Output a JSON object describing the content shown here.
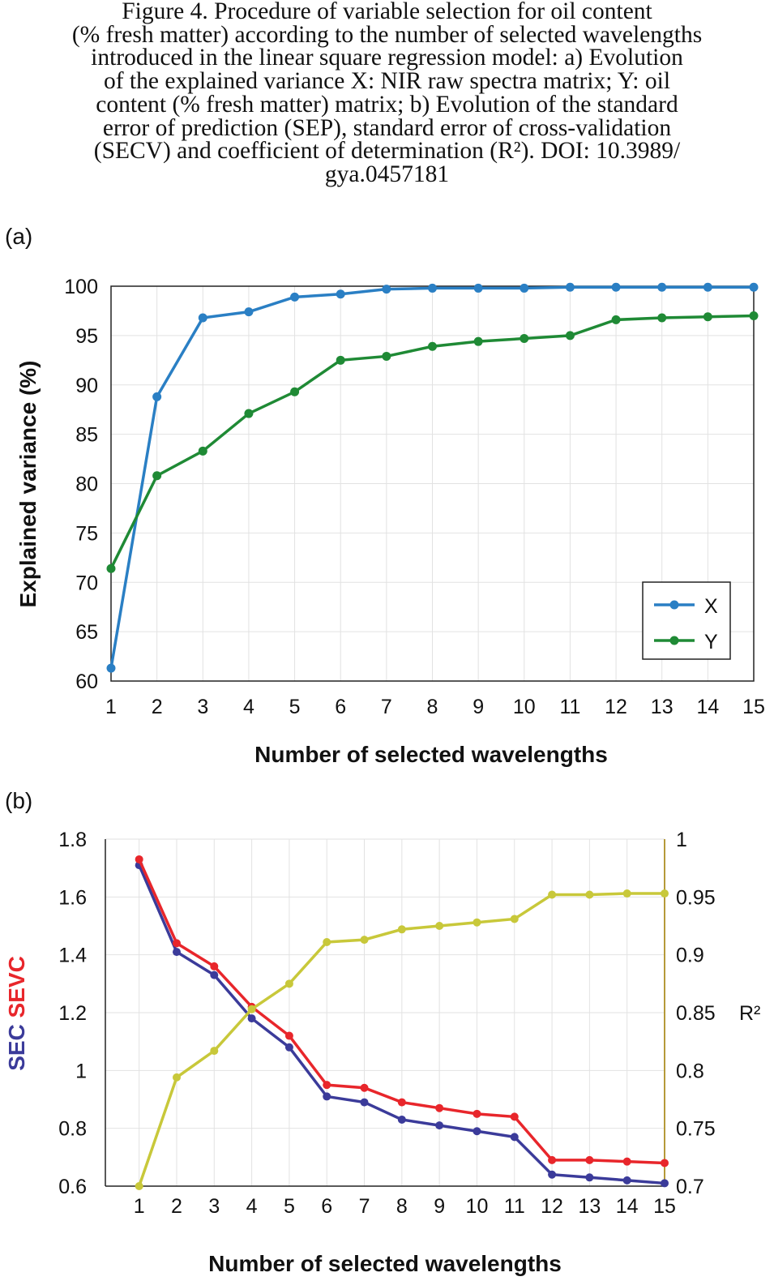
{
  "caption": {
    "lines": [
      "Figure 4.  Procedure of variable selection for oil content",
      "(% fresh matter) according to the number of selected wavelengths",
      "introduced in the linear square regression model: a) Evolution",
      "of the explained variance X: NIR raw spectra matrix; Y: oil",
      "content (% fresh matter) matrix; b) Evolution of the standard",
      "error of prediction (SEP), standard error of cross-validation",
      "(SECV) and coefficient of determination (R²).  DOI: 10.3989/",
      "gya.0457181"
    ]
  },
  "panel_a_label": "(a)",
  "panel_b_label": "(b)",
  "colors": {
    "x_series": "#2a7fc4",
    "y_series": "#1f8a35",
    "sec": "#3b3b9a",
    "secv": "#e8262b",
    "r2": "#c8c83a",
    "r2_axis": "#b59a3a",
    "grid": "#e2e2e2"
  },
  "chart_data": [
    {
      "type": "line",
      "xlabel": "Number of selected wavelengths",
      "ylabel": "Explained variance (%)",
      "x": [
        1,
        2,
        3,
        4,
        5,
        6,
        7,
        8,
        9,
        10,
        11,
        12,
        13,
        14,
        15
      ],
      "xlim": [
        1,
        15
      ],
      "ylim": [
        60,
        100
      ],
      "yticks": [
        60,
        65,
        70,
        75,
        80,
        85,
        90,
        95,
        100
      ],
      "grid": true,
      "legend": "bottom-right",
      "series": [
        {
          "name": "X",
          "values": [
            61.3,
            88.8,
            96.8,
            97.4,
            98.9,
            99.2,
            99.7,
            99.8,
            99.8,
            99.8,
            99.9,
            99.9,
            99.9,
            99.9,
            99.9
          ]
        },
        {
          "name": "Y",
          "values": [
            71.4,
            80.8,
            83.3,
            87.1,
            89.3,
            92.5,
            92.9,
            93.9,
            94.4,
            94.7,
            95.0,
            96.6,
            96.8,
            96.9,
            97.0
          ]
        }
      ]
    },
    {
      "type": "line",
      "xlabel": "Number of selected wavelengths",
      "ylabel_parts": [
        "SEC",
        "SEVC"
      ],
      "y2label": "R²",
      "x": [
        1,
        2,
        3,
        4,
        5,
        6,
        7,
        8,
        9,
        10,
        11,
        12,
        13,
        14,
        15
      ],
      "xlim": [
        0.1,
        15
      ],
      "ylim": [
        0.6,
        1.8
      ],
      "yticks": [
        0.6,
        0.8,
        1,
        1.2,
        1.4,
        1.6,
        1.8
      ],
      "y2lim": [
        0.7,
        1
      ],
      "y2ticks": [
        0.7,
        0.75,
        0.8,
        0.85,
        0.9,
        0.95,
        1
      ],
      "grid": true,
      "series": [
        {
          "name": "SEC",
          "axis": "left",
          "values": [
            1.71,
            1.41,
            1.33,
            1.18,
            1.08,
            0.91,
            0.89,
            0.83,
            0.81,
            0.79,
            0.77,
            0.64,
            0.63,
            0.62,
            0.61
          ]
        },
        {
          "name": "SEVC",
          "axis": "left",
          "values": [
            1.73,
            1.44,
            1.36,
            1.22,
            1.12,
            0.95,
            0.94,
            0.89,
            0.87,
            0.85,
            0.84,
            0.69,
            0.69,
            0.685,
            0.68
          ]
        },
        {
          "name": "R²",
          "axis": "right",
          "values": [
            0.7,
            0.794,
            0.817,
            0.853,
            0.875,
            0.911,
            0.913,
            0.922,
            0.925,
            0.928,
            0.931,
            0.952,
            0.952,
            0.953,
            0.953
          ]
        }
      ]
    }
  ]
}
